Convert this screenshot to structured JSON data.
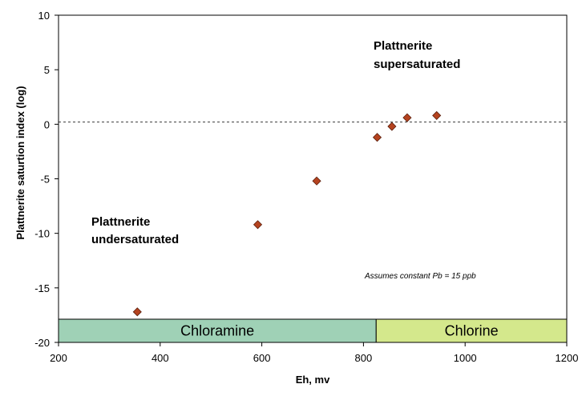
{
  "chart_data": {
    "type": "scatter",
    "xlabel": "Eh, mv",
    "ylabel": "Plattnerite saturtion index (log)",
    "xlim": [
      200,
      1200
    ],
    "ylim": [
      -20,
      10
    ],
    "xticks": [
      200,
      400,
      600,
      800,
      1000,
      1200
    ],
    "yticks": [
      -20,
      -15,
      -10,
      -5,
      0,
      5,
      10
    ],
    "grid": false,
    "reference_line": {
      "y": 0.2,
      "style": "dashed"
    },
    "marker_color": "#b5431f",
    "points": [
      {
        "x": 355,
        "y": -17.2
      },
      {
        "x": 592,
        "y": -9.2
      },
      {
        "x": 708,
        "y": -5.2
      },
      {
        "x": 827,
        "y": -1.2
      },
      {
        "x": 856,
        "y": -0.2
      },
      {
        "x": 886,
        "y": 0.6
      },
      {
        "x": 944,
        "y": 0.8
      }
    ],
    "bands": [
      {
        "label": "Chloramine",
        "x_start": 200,
        "x_end": 825,
        "color": "#9fd1b6"
      },
      {
        "label": "Chlorine",
        "x_start": 825,
        "x_end": 1200,
        "color": "#d4e88c"
      }
    ],
    "annotations": {
      "supersaturated_line1": "Plattnerite",
      "supersaturated_line2": "supersaturated",
      "undersaturated_line1": "Plattnerite",
      "undersaturated_line2": "undersaturated",
      "assumption": "Assumes constant Pb = 15 ppb"
    }
  }
}
